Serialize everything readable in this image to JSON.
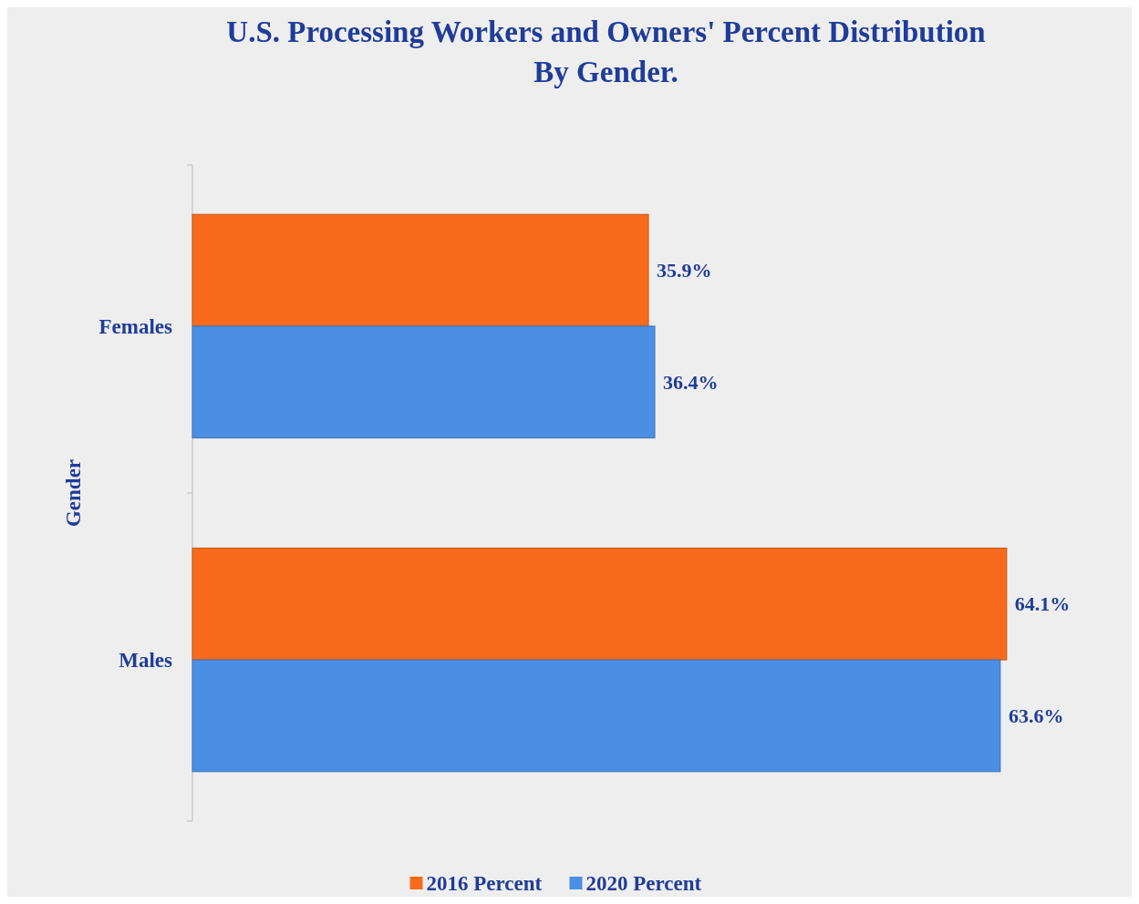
{
  "chart_data": {
    "type": "bar",
    "orientation": "horizontal",
    "title": "U.S. Processing Workers and Owners' Percent Distribution By Gender.",
    "ylabel": "Gender",
    "categories": [
      "Females",
      "Males"
    ],
    "series": [
      {
        "name": "2016 Percent",
        "color": "#f96b1c",
        "values": [
          35.9,
          64.1
        ],
        "value_labels": [
          "35.9%",
          "64.1%"
        ]
      },
      {
        "name": "2020 Percent",
        "color": "#4a8fe3",
        "values": [
          36.4,
          63.6
        ],
        "value_labels": [
          "36.4%",
          "63.6%"
        ]
      }
    ],
    "legend": "bottom"
  }
}
